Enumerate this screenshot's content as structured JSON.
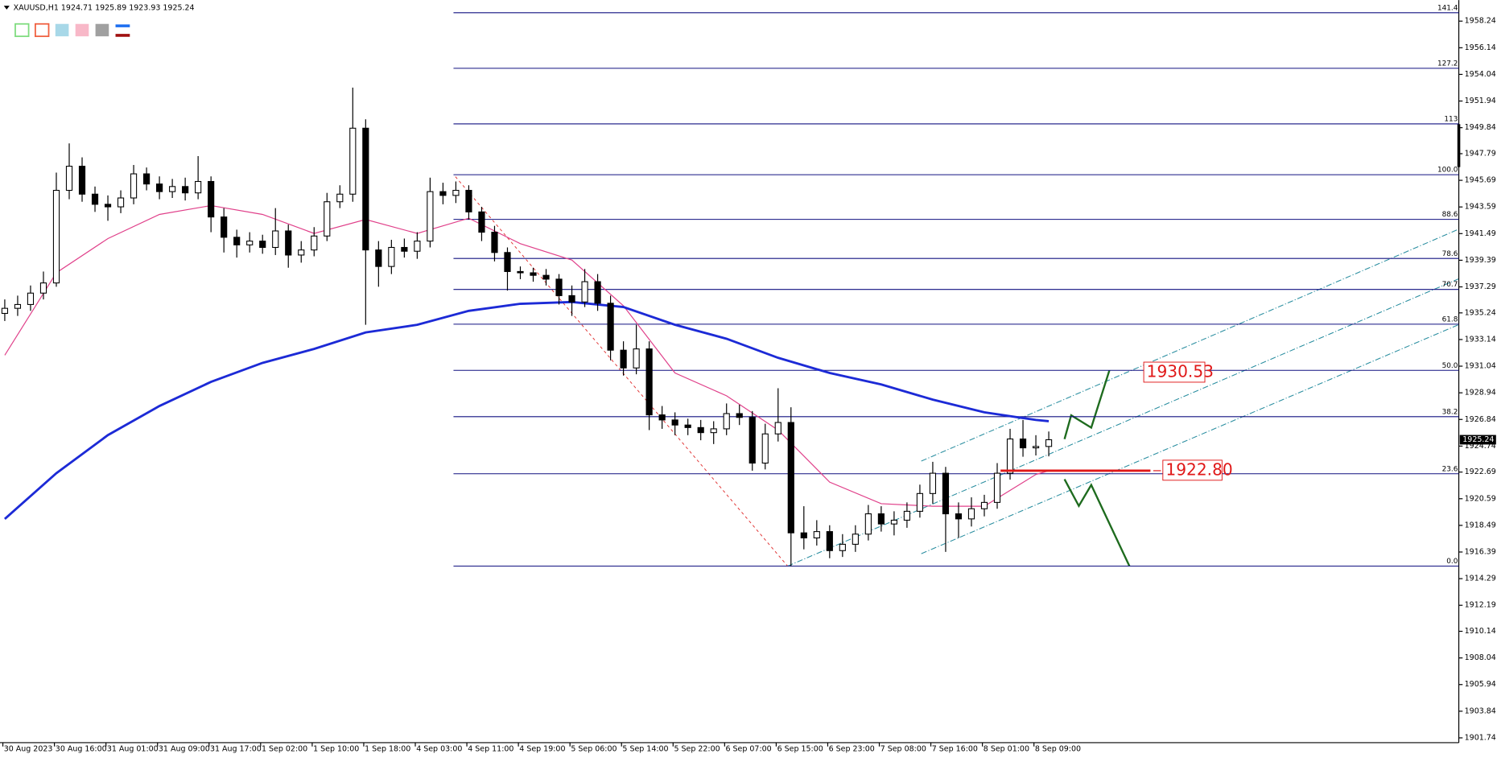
{
  "chart_data": {
    "type": "candlestick",
    "symbol": "XAUUSD,H1",
    "ylim": [
      1901.36,
      1959.9
    ],
    "yticks": [
      1901.74,
      1903.84,
      1905.94,
      1908.04,
      1910.14,
      1912.19,
      1914.29,
      1916.39,
      1918.49,
      1920.59,
      1922.69,
      1924.74,
      1926.84,
      1928.94,
      1931.04,
      1933.14,
      1935.24,
      1937.29,
      1939.39,
      1941.49,
      1943.59,
      1945.69,
      1947.79,
      1949.84,
      1951.94,
      1954.04,
      1956.14,
      1958.24
    ],
    "xticks": [
      {
        "value": 0,
        "label": "30 Aug 2023"
      },
      {
        "value": 4,
        "label": "30 Aug 16:00"
      },
      {
        "value": 8,
        "label": "31 Aug 01:00"
      },
      {
        "value": 12,
        "label": "31 Aug 09:00"
      },
      {
        "value": 16,
        "label": "31 Aug 17:00"
      },
      {
        "value": 20,
        "label": "1 Sep 02:00"
      },
      {
        "value": 24,
        "label": "1 Sep 10:00"
      },
      {
        "value": 28,
        "label": "1 Sep 18:00"
      },
      {
        "value": 32,
        "label": "4 Sep 03:00"
      },
      {
        "value": 36,
        "label": "4 Sep 11:00"
      },
      {
        "value": 40,
        "label": "4 Sep 19:00"
      },
      {
        "value": 44,
        "label": "5 Sep 06:00"
      },
      {
        "value": 48,
        "label": "5 Sep 14:00"
      },
      {
        "value": 52,
        "label": "5 Sep 22:00"
      },
      {
        "value": 56,
        "label": "6 Sep 07:00"
      },
      {
        "value": 60,
        "label": "6 Sep 15:00"
      },
      {
        "value": 64,
        "label": "6 Sep 23:00"
      },
      {
        "value": 68,
        "label": "7 Sep 08:00"
      },
      {
        "value": 72,
        "label": "7 Sep 16:00"
      },
      {
        "value": 76,
        "label": "8 Sep 01:00"
      },
      {
        "value": 80,
        "label": "8 Sep 09:00"
      }
    ],
    "open": [
      1935.2,
      1935.6,
      1935.9,
      1936.8,
      1937.6,
      1944.9,
      1946.8,
      1944.6,
      1943.8,
      1943.6,
      1944.3,
      1946.2,
      1945.4,
      1944.8,
      1945.2,
      1944.7,
      1945.6,
      1942.8,
      1941.2,
      1940.6,
      1940.9,
      1940.4,
      1941.7,
      1939.8,
      1940.2,
      1941.3,
      1944.0,
      1944.6,
      1949.8,
      1940.2,
      1938.9,
      1940.4,
      1940.1,
      1940.9,
      1944.8,
      1944.5,
      1944.9,
      1943.2,
      1941.6,
      1940.0,
      1938.5,
      1938.4,
      1938.2,
      1937.9,
      1936.6,
      1936.1,
      1937.7,
      1936.0,
      1932.3,
      1930.9,
      1932.4,
      1927.2,
      1926.8,
      1926.4,
      1926.2,
      1925.8,
      1926.1,
      1927.3,
      1927.0,
      1923.4,
      1925.7,
      1926.6,
      1917.9,
      1917.5,
      1918.0,
      1916.5,
      1917.0,
      1917.8,
      1919.4,
      1918.6,
      1918.9,
      1919.6,
      1921.0,
      1922.6,
      1919.4,
      1919.0,
      1919.8,
      1920.3,
      1922.6,
      1925.3,
      1924.6,
      1924.71
    ],
    "high": [
      1936.3,
      1936.6,
      1937.4,
      1938.5,
      1946.3,
      1948.6,
      1947.5,
      1945.2,
      1944.5,
      1944.9,
      1946.9,
      1946.7,
      1946.0,
      1945.8,
      1945.9,
      1947.6,
      1946.0,
      1943.5,
      1941.8,
      1941.6,
      1941.4,
      1943.5,
      1942.2,
      1940.9,
      1942.0,
      1944.7,
      1945.3,
      1953.0,
      1950.5,
      1940.9,
      1941.0,
      1941.1,
      1941.6,
      1945.9,
      1945.5,
      1945.6,
      1945.3,
      1943.6,
      1942.1,
      1940.4,
      1938.9,
      1938.8,
      1938.7,
      1938.3,
      1937.4,
      1938.7,
      1938.3,
      1936.6,
      1933.0,
      1934.3,
      1933.0,
      1927.9,
      1927.4,
      1926.9,
      1926.8,
      1926.7,
      1928.1,
      1928.0,
      1927.5,
      1926.5,
      1929.3,
      1927.8,
      1920.0,
      1918.9,
      1918.5,
      1917.8,
      1918.5,
      1920.1,
      1920.0,
      1919.6,
      1920.3,
      1921.7,
      1923.5,
      1923.1,
      1920.3,
      1920.7,
      1920.9,
      1923.4,
      1926.1,
      1926.8,
      1925.6,
      1925.89
    ],
    "low": [
      1934.6,
      1935.0,
      1935.4,
      1936.3,
      1937.3,
      1944.2,
      1944.0,
      1943.2,
      1942.5,
      1943.1,
      1943.8,
      1944.9,
      1944.2,
      1944.3,
      1944.1,
      1944.2,
      1941.6,
      1940.0,
      1939.6,
      1940.0,
      1939.9,
      1939.8,
      1938.8,
      1939.2,
      1939.7,
      1940.9,
      1943.5,
      1944.0,
      1934.3,
      1937.3,
      1938.3,
      1939.6,
      1939.5,
      1940.4,
      1943.8,
      1943.9,
      1942.6,
      1940.9,
      1939.3,
      1937.0,
      1937.9,
      1937.7,
      1937.4,
      1935.9,
      1935.0,
      1935.7,
      1935.4,
      1931.5,
      1930.3,
      1930.4,
      1926.0,
      1926.1,
      1925.6,
      1925.6,
      1925.2,
      1924.9,
      1925.6,
      1926.4,
      1922.8,
      1922.9,
      1925.1,
      1915.28,
      1916.6,
      1916.9,
      1915.9,
      1916.0,
      1916.4,
      1917.3,
      1918.0,
      1917.7,
      1918.3,
      1919.1,
      1920.2,
      1916.4,
      1917.5,
      1918.4,
      1919.2,
      1919.8,
      1922.1,
      1923.9,
      1924.0,
      1923.93
    ],
    "close": [
      1935.6,
      1935.9,
      1936.8,
      1937.6,
      1944.9,
      1946.8,
      1944.6,
      1943.8,
      1943.6,
      1944.3,
      1946.2,
      1945.4,
      1944.8,
      1945.2,
      1944.7,
      1945.6,
      1942.8,
      1941.2,
      1940.6,
      1940.9,
      1940.4,
      1941.7,
      1939.8,
      1940.2,
      1941.3,
      1944.0,
      1944.6,
      1949.8,
      1940.2,
      1938.9,
      1940.4,
      1940.1,
      1940.9,
      1944.8,
      1944.5,
      1944.9,
      1943.2,
      1941.6,
      1940.0,
      1938.5,
      1938.4,
      1938.2,
      1937.9,
      1936.6,
      1936.1,
      1937.7,
      1936.0,
      1932.3,
      1930.9,
      1932.4,
      1927.2,
      1926.8,
      1926.4,
      1926.2,
      1925.8,
      1926.1,
      1927.3,
      1927.0,
      1923.4,
      1925.7,
      1926.6,
      1917.9,
      1917.5,
      1918.0,
      1916.5,
      1917.0,
      1917.8,
      1919.4,
      1918.6,
      1918.9,
      1919.6,
      1921.0,
      1922.6,
      1919.4,
      1919.0,
      1919.8,
      1920.3,
      1922.6,
      1925.3,
      1924.6,
      1924.71,
      1925.24
    ],
    "series": [
      {
        "color": "#e0408a",
        "x": [
          0,
          4,
          8,
          12,
          16,
          20,
          24,
          28,
          32,
          36,
          40,
          44,
          48,
          52,
          56,
          60,
          64,
          68,
          72,
          76,
          80,
          81
        ],
        "values": [
          1931.9,
          1938.4,
          1941.1,
          1943.0,
          1943.7,
          1943.0,
          1941.5,
          1942.6,
          1941.5,
          1942.7,
          1940.7,
          1939.4,
          1935.8,
          1930.5,
          1928.7,
          1926.0,
          1921.9,
          1920.2,
          1920.0,
          1920.0,
          1922.5,
          1922.8
        ]
      },
      {
        "color": "#1c2ad6",
        "x": [
          0,
          4,
          8,
          12,
          16,
          20,
          24,
          28,
          32,
          36,
          40,
          44,
          48,
          52,
          56,
          60,
          64,
          68,
          72,
          76,
          80,
          81
        ],
        "values": [
          1919.0,
          1922.6,
          1925.6,
          1927.9,
          1929.8,
          1931.3,
          1932.4,
          1933.7,
          1934.3,
          1935.4,
          1935.96,
          1936.1,
          1935.7,
          1934.3,
          1933.2,
          1931.7,
          1930.5,
          1929.6,
          1928.4,
          1927.4,
          1926.8,
          1926.7
        ]
      }
    ],
    "fib_levels": [
      {
        "label": "0.0",
        "price": 1915.28
      },
      {
        "label": "23.6",
        "price": 1922.56
      },
      {
        "label": "38.2",
        "price": 1927.06
      },
      {
        "label": "50.0",
        "price": 1930.71
      },
      {
        "label": "61.8",
        "price": 1934.35
      },
      {
        "label": "70.7",
        "price": 1937.09
      },
      {
        "label": "78.6",
        "price": 1939.53
      },
      {
        "label": "88.6",
        "price": 1942.61
      },
      {
        "label": "100.0",
        "price": 1946.13
      },
      {
        "label": "113",
        "price": 1950.14
      },
      {
        "label": "127.2",
        "price": 1954.52
      },
      {
        "label": "141.4",
        "price": 1958.9
      }
    ],
    "annotations": [
      {
        "value": 1930.53
      },
      {
        "value": 1922.8,
        "label": "1922.80"
      }
    ]
  }
}
